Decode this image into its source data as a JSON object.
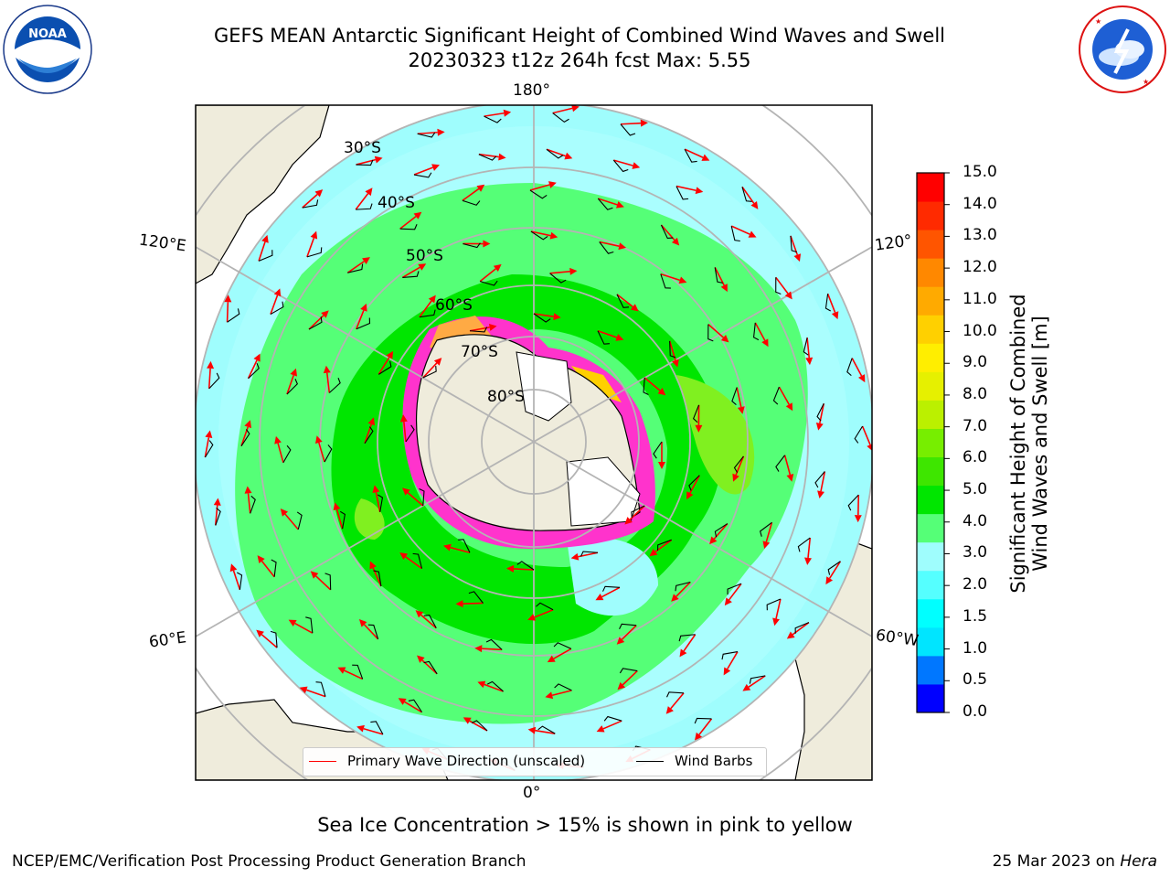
{
  "title": {
    "line1": "GEFS MEAN Antarctic Significant Height of Combined Wind Waves and Swell",
    "line2": "20230323 t12z 264h fcst   Max: 5.55"
  },
  "logos": {
    "left": "NOAA",
    "right": "NATIONAL WEATHER SERVICE"
  },
  "map": {
    "projection": "south-polar-stereographic",
    "latitude_labels": [
      "30°S",
      "40°S",
      "50°S",
      "60°S",
      "70°S",
      "80°S"
    ],
    "longitude_labels": {
      "top": "180°",
      "bottom": "0°",
      "left_upper": "120°E",
      "left_lower": "60°E",
      "right_upper": "120°",
      "right_lower": "60°W"
    },
    "colors": {
      "land": "#efecdc",
      "ice_shelf": "#ffffff",
      "wave_low": "#9ffdfd",
      "wave_mid": "#55ff77",
      "wave_high": "#00e600",
      "wave_peak": "#80f020",
      "sea_ice": "#ff33cc",
      "arrow": "#ff0000",
      "barb": "#000000",
      "grid": "#b4b4b4"
    }
  },
  "colorbar": {
    "ticks": [
      "15.0",
      "14.0",
      "13.0",
      "12.0",
      "11.0",
      "10.0",
      "9.0",
      "8.0",
      "7.0",
      "6.0",
      "5.0",
      "4.0",
      "3.0",
      "2.0",
      "1.5",
      "1.0",
      "0.5",
      "0.0"
    ],
    "colors": [
      "#0000ff",
      "#0077ff",
      "#00e5ff",
      "#00ffff",
      "#55ffff",
      "#9ffdfd",
      "#55ff77",
      "#00e600",
      "#3ee600",
      "#77ee00",
      "#bbf000",
      "#e6f000",
      "#ffee00",
      "#ffd000",
      "#ffaa00",
      "#ff8800",
      "#ff5500",
      "#ff2a00",
      "#ff0000"
    ],
    "label": "Significant Height of Combined Wind Waves and Swell [m]"
  },
  "legend": {
    "items": [
      {
        "label": "Primary Wave Direction (unscaled)",
        "color": "#ff0000"
      },
      {
        "label": "Wind Barbs",
        "color": "#000000"
      }
    ]
  },
  "notes": {
    "sea_ice": "Sea Ice Concentration > 15% is shown in pink to yellow"
  },
  "footer": {
    "left": "NCEP/EMC/Verification Post Processing Product Generation Branch",
    "right_date": "25 Mar 2023 on",
    "right_machine": "Hera"
  }
}
